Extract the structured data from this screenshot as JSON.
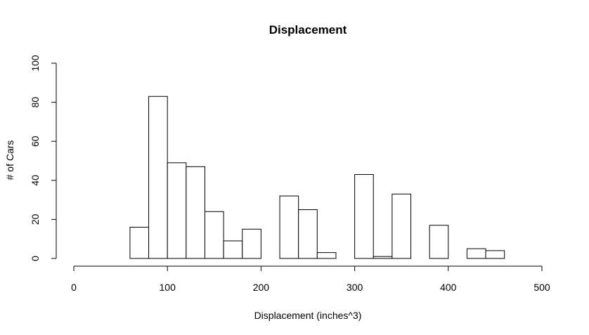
{
  "chart_data": {
    "type": "bar",
    "title": "Displacement",
    "xlabel": "Displacement (inches^3)",
    "ylabel": "# of Cars",
    "xlim": [
      0,
      500
    ],
    "ylim": [
      0,
      100
    ],
    "x_ticks": [
      0,
      100,
      200,
      300,
      400,
      500
    ],
    "y_ticks": [
      0,
      20,
      40,
      60,
      80,
      100
    ],
    "grid": false,
    "bin_width": 20,
    "bins": [
      {
        "start": 60,
        "end": 80,
        "count": 16
      },
      {
        "start": 80,
        "end": 100,
        "count": 83
      },
      {
        "start": 100,
        "end": 120,
        "count": 49
      },
      {
        "start": 120,
        "end": 140,
        "count": 47
      },
      {
        "start": 140,
        "end": 160,
        "count": 24
      },
      {
        "start": 160,
        "end": 180,
        "count": 9
      },
      {
        "start": 180,
        "end": 200,
        "count": 15
      },
      {
        "start": 200,
        "end": 220,
        "count": 0
      },
      {
        "start": 220,
        "end": 240,
        "count": 32
      },
      {
        "start": 240,
        "end": 260,
        "count": 25
      },
      {
        "start": 260,
        "end": 280,
        "count": 3
      },
      {
        "start": 280,
        "end": 300,
        "count": 0
      },
      {
        "start": 300,
        "end": 320,
        "count": 43
      },
      {
        "start": 320,
        "end": 340,
        "count": 1
      },
      {
        "start": 340,
        "end": 360,
        "count": 33
      },
      {
        "start": 360,
        "end": 380,
        "count": 0
      },
      {
        "start": 380,
        "end": 400,
        "count": 17
      },
      {
        "start": 400,
        "end": 420,
        "count": 0
      },
      {
        "start": 420,
        "end": 440,
        "count": 5
      },
      {
        "start": 440,
        "end": 460,
        "count": 4
      }
    ]
  }
}
